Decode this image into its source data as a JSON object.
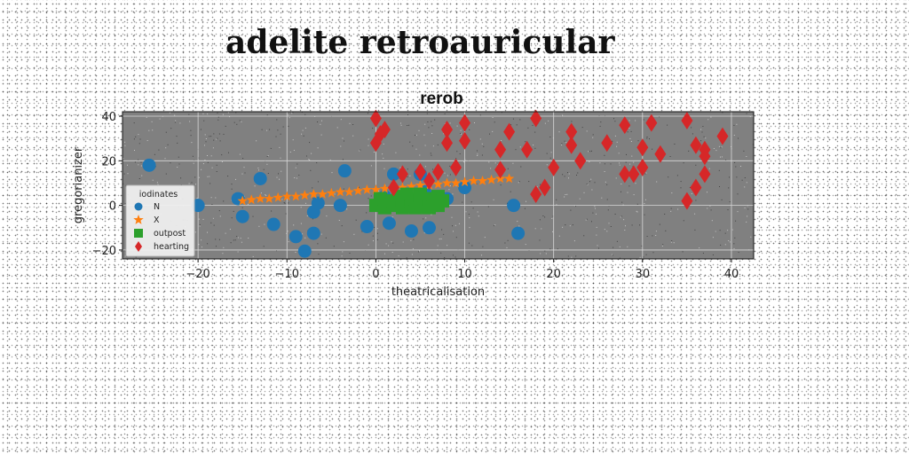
{
  "figure": {
    "suptitle": "adelite retroauricular"
  },
  "chart_data": {
    "type": "scatter",
    "title": "rerob",
    "xlabel": "theatricalisation",
    "ylabel": "gregorianizer",
    "xlim": [
      -28.5,
      42.5
    ],
    "ylim": [
      -24,
      42
    ],
    "xticks": [
      -20,
      -10,
      0,
      10,
      20,
      30,
      40
    ],
    "xtick_labels": [
      "−20",
      "−10",
      "0",
      "10",
      "20",
      "30",
      "40"
    ],
    "yticks": [
      -20,
      0,
      20,
      40
    ],
    "ytick_labels": [
      "−20",
      "0",
      "20",
      "40"
    ],
    "grid": true,
    "background": "#808080",
    "legend": {
      "title": "iodinates",
      "placement": "center-left"
    },
    "series": [
      {
        "name": "N",
        "marker": "circle",
        "color": "#1f77b4",
        "points": [
          [
            -25.5,
            18
          ],
          [
            -20,
            0
          ],
          [
            -15.5,
            3
          ],
          [
            -15,
            -5
          ],
          [
            -13,
            12
          ],
          [
            -11.5,
            -8.5
          ],
          [
            -9,
            -14
          ],
          [
            -8,
            -20.5
          ],
          [
            -7,
            -12.5
          ],
          [
            -7,
            -3
          ],
          [
            -6.5,
            1
          ],
          [
            -4,
            0
          ],
          [
            -3.5,
            15.5
          ],
          [
            -1,
            -9.5
          ],
          [
            1,
            4
          ],
          [
            1.5,
            -8
          ],
          [
            2,
            14
          ],
          [
            2.5,
            3
          ],
          [
            4,
            -11.5
          ],
          [
            5,
            14
          ],
          [
            5.5,
            6
          ],
          [
            6,
            -10
          ],
          [
            8,
            3
          ],
          [
            10,
            8
          ],
          [
            15.5,
            0
          ],
          [
            16,
            -12.5
          ]
        ]
      },
      {
        "name": "X",
        "marker": "star",
        "color": "#ff7f0e",
        "points": [
          [
            -15,
            2
          ],
          [
            -14,
            2.5
          ],
          [
            -13,
            3
          ],
          [
            -12,
            3
          ],
          [
            -11,
            3.5
          ],
          [
            -10,
            4
          ],
          [
            -9,
            4
          ],
          [
            -8,
            4.5
          ],
          [
            -7,
            5
          ],
          [
            -6,
            5
          ],
          [
            -5,
            5.5
          ],
          [
            -4,
            6
          ],
          [
            -3,
            6
          ],
          [
            -2,
            6.5
          ],
          [
            -1,
            7
          ],
          [
            0,
            7
          ],
          [
            1,
            7.5
          ],
          [
            2,
            8
          ],
          [
            3,
            8
          ],
          [
            4,
            8.5
          ],
          [
            5,
            9
          ],
          [
            6,
            9
          ],
          [
            7,
            9.5
          ],
          [
            8,
            10
          ],
          [
            9,
            10
          ],
          [
            10,
            10.5
          ],
          [
            11,
            11
          ],
          [
            12,
            11
          ],
          [
            13,
            11.5
          ],
          [
            14,
            12
          ],
          [
            15,
            12
          ]
        ]
      },
      {
        "name": "outpost",
        "marker": "square",
        "color": "#2ca02c",
        "points": [
          [
            0,
            0
          ],
          [
            0.5,
            3
          ],
          [
            1,
            -1
          ],
          [
            1.5,
            2
          ],
          [
            2,
            0
          ],
          [
            2.5,
            4
          ],
          [
            3,
            -1
          ],
          [
            3,
            2
          ],
          [
            3.5,
            5
          ],
          [
            4,
            0
          ],
          [
            4,
            3
          ],
          [
            4.5,
            -1
          ],
          [
            5,
            2
          ],
          [
            5,
            5
          ],
          [
            5.5,
            0
          ],
          [
            6,
            3
          ],
          [
            6,
            -1
          ],
          [
            6.5,
            1
          ],
          [
            7,
            4
          ],
          [
            7,
            0
          ],
          [
            7.5,
            2
          ]
        ]
      },
      {
        "name": "hearting",
        "marker": "diamond",
        "color": "#d62728",
        "points": [
          [
            0,
            39
          ],
          [
            0,
            28
          ],
          [
            0.5,
            32
          ],
          [
            1,
            34
          ],
          [
            2,
            8
          ],
          [
            3,
            14
          ],
          [
            5,
            15
          ],
          [
            6,
            11
          ],
          [
            7,
            15
          ],
          [
            8,
            28
          ],
          [
            8,
            34
          ],
          [
            9,
            17
          ],
          [
            10,
            37
          ],
          [
            10,
            29
          ],
          [
            14,
            16
          ],
          [
            14,
            25
          ],
          [
            15,
            33
          ],
          [
            17,
            25
          ],
          [
            18,
            39
          ],
          [
            18,
            5
          ],
          [
            19,
            8
          ],
          [
            20,
            17
          ],
          [
            22,
            33
          ],
          [
            22,
            27
          ],
          [
            23,
            20
          ],
          [
            26,
            28
          ],
          [
            28,
            36
          ],
          [
            28,
            14
          ],
          [
            29,
            14
          ],
          [
            30,
            26
          ],
          [
            30,
            17
          ],
          [
            31,
            37
          ],
          [
            32,
            23
          ],
          [
            35,
            38
          ],
          [
            35,
            2
          ],
          [
            36,
            27
          ],
          [
            36,
            8
          ],
          [
            37,
            25
          ],
          [
            37,
            22
          ],
          [
            37,
            14
          ],
          [
            39,
            31
          ]
        ]
      }
    ]
  }
}
